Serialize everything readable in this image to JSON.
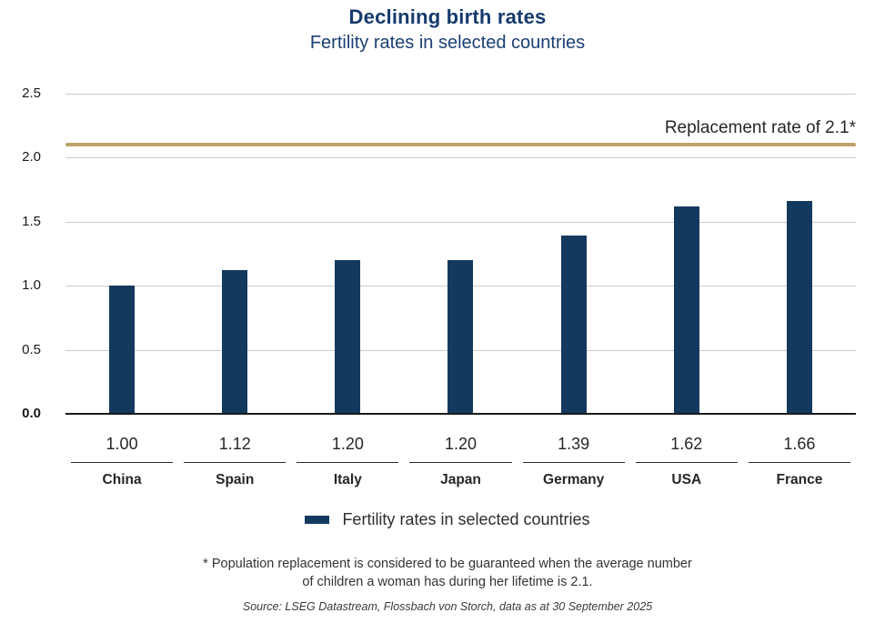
{
  "chart_data": {
    "type": "bar",
    "title": "Declining birth rates",
    "subtitle": "Fertility rates in selected countries",
    "categories": [
      "China",
      "Spain",
      "Italy",
      "Japan",
      "Germany",
      "USA",
      "France"
    ],
    "values": [
      1.0,
      1.12,
      1.2,
      1.2,
      1.39,
      1.62,
      1.66
    ],
    "value_labels": [
      "1.00",
      "1.12",
      "1.20",
      "1.20",
      "1.39",
      "1.62",
      "1.66"
    ],
    "ylim": [
      0,
      2.5
    ],
    "yticks": [
      "0.0",
      "0.5",
      "1.0",
      "1.5",
      "2.0",
      "2.5"
    ],
    "grid": true,
    "legend_position": "bottom",
    "ref_line": {
      "value": 2.1,
      "label": "Replacement rate of 2.1*",
      "color": "#bfa26b"
    },
    "legend": {
      "label": "Fertility rates in selected countries",
      "swatch_color": "#14395e"
    },
    "footnote_line1": "* Population replacement is considered to be guaranteed when the average number",
    "footnote_line2": "of children a woman has during her lifetime is 2.1.",
    "source": "Source: LSEG Datastream, Flossbach von Storch, data as at 30 September 2025",
    "colors": {
      "bar": "#14395e",
      "title": "#163a6e",
      "grid": "#cccccc",
      "axis": "#1a1a1a",
      "text": "#262626"
    }
  }
}
